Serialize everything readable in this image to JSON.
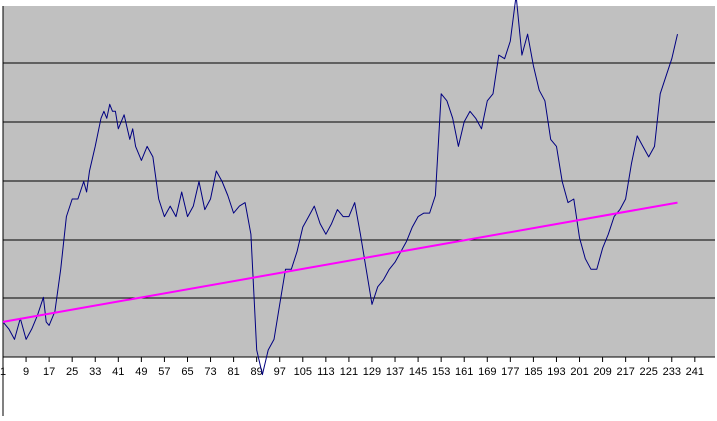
{
  "chart_data": {
    "type": "line",
    "title": "",
    "xlabel": "",
    "ylabel": "",
    "x_tick_labels": [
      "1",
      "9",
      "17",
      "25",
      "33",
      "41",
      "49",
      "57",
      "65",
      "73",
      "81",
      "89",
      "97",
      "105",
      "113",
      "121",
      "129",
      "137",
      "145",
      "153",
      "161",
      "169",
      "177",
      "185",
      "193",
      "201",
      "209",
      "217",
      "225",
      "233",
      "241"
    ],
    "xlim": [
      1,
      248
    ],
    "grid": "horizontal",
    "legend": "none",
    "colors": {
      "plot_bg": "#c0c0c0",
      "line1": "#000080",
      "line2": "#ff00ff",
      "grid": "#000000"
    },
    "series": [
      {
        "color": "#000080",
        "points": [
          [
            1,
            0.0
          ],
          [
            3,
            -0.2
          ],
          [
            5,
            -0.5
          ],
          [
            7,
            0.1
          ],
          [
            9,
            -0.5
          ],
          [
            11,
            -0.2
          ],
          [
            13,
            0.2
          ],
          [
            15,
            0.7
          ],
          [
            16,
            0.0
          ],
          [
            17,
            -0.1
          ],
          [
            19,
            0.3
          ],
          [
            21,
            1.5
          ],
          [
            23,
            3.0
          ],
          [
            25,
            3.5
          ],
          [
            27,
            3.5
          ],
          [
            29,
            4.0
          ],
          [
            30,
            3.7
          ],
          [
            31,
            4.3
          ],
          [
            33,
            5.0
          ],
          [
            35,
            5.8
          ],
          [
            36,
            6.0
          ],
          [
            37,
            5.8
          ],
          [
            38,
            6.2
          ],
          [
            39,
            6.0
          ],
          [
            40,
            6.0
          ],
          [
            41,
            5.5
          ],
          [
            43,
            5.9
          ],
          [
            45,
            5.2
          ],
          [
            46,
            5.5
          ],
          [
            47,
            5.0
          ],
          [
            49,
            4.6
          ],
          [
            51,
            5.0
          ],
          [
            53,
            4.7
          ],
          [
            55,
            3.5
          ],
          [
            57,
            3.0
          ],
          [
            59,
            3.3
          ],
          [
            61,
            3.0
          ],
          [
            63,
            3.7
          ],
          [
            65,
            3.0
          ],
          [
            67,
            3.3
          ],
          [
            69,
            4.0
          ],
          [
            71,
            3.2
          ],
          [
            73,
            3.5
          ],
          [
            75,
            4.3
          ],
          [
            77,
            4.0
          ],
          [
            79,
            3.6
          ],
          [
            81,
            3.1
          ],
          [
            82,
            3.2
          ],
          [
            83,
            3.3
          ],
          [
            85,
            3.4
          ],
          [
            87,
            2.5
          ],
          [
            89,
            -0.8
          ],
          [
            91,
            -1.5
          ],
          [
            93,
            -0.8
          ],
          [
            95,
            -0.5
          ],
          [
            97,
            0.5
          ],
          [
            99,
            1.5
          ],
          [
            101,
            1.5
          ],
          [
            103,
            2.0
          ],
          [
            105,
            2.7
          ],
          [
            107,
            3.0
          ],
          [
            109,
            3.3
          ],
          [
            111,
            2.8
          ],
          [
            113,
            2.5
          ],
          [
            115,
            2.8
          ],
          [
            117,
            3.2
          ],
          [
            119,
            3.0
          ],
          [
            121,
            3.0
          ],
          [
            123,
            3.4
          ],
          [
            125,
            2.5
          ],
          [
            127,
            1.5
          ],
          [
            129,
            0.5
          ],
          [
            131,
            1.0
          ],
          [
            133,
            1.2
          ],
          [
            135,
            1.5
          ],
          [
            137,
            1.7
          ],
          [
            139,
            2.0
          ],
          [
            141,
            2.3
          ],
          [
            143,
            2.7
          ],
          [
            145,
            3.0
          ],
          [
            147,
            3.1
          ],
          [
            149,
            3.1
          ],
          [
            151,
            3.6
          ],
          [
            153,
            6.5
          ],
          [
            155,
            6.3
          ],
          [
            157,
            5.8
          ],
          [
            159,
            5.0
          ],
          [
            161,
            5.7
          ],
          [
            163,
            6.0
          ],
          [
            165,
            5.8
          ],
          [
            167,
            5.5
          ],
          [
            169,
            6.3
          ],
          [
            171,
            6.5
          ],
          [
            173,
            7.6
          ],
          [
            175,
            7.5
          ],
          [
            177,
            8.0
          ],
          [
            179,
            9.3
          ],
          [
            181,
            7.6
          ],
          [
            183,
            8.2
          ],
          [
            185,
            7.3
          ],
          [
            187,
            6.6
          ],
          [
            189,
            6.3
          ],
          [
            191,
            5.2
          ],
          [
            193,
            5.0
          ],
          [
            195,
            4.0
          ],
          [
            197,
            3.4
          ],
          [
            199,
            3.5
          ],
          [
            201,
            2.4
          ],
          [
            203,
            1.8
          ],
          [
            205,
            1.5
          ],
          [
            207,
            1.5
          ],
          [
            209,
            2.1
          ],
          [
            211,
            2.5
          ],
          [
            213,
            3.0
          ],
          [
            215,
            3.2
          ],
          [
            217,
            3.5
          ],
          [
            219,
            4.5
          ],
          [
            221,
            5.3
          ],
          [
            223,
            5.0
          ],
          [
            225,
            4.7
          ],
          [
            227,
            5.0
          ],
          [
            229,
            6.5
          ],
          [
            231,
            7.0
          ],
          [
            233,
            7.5
          ],
          [
            235,
            8.2
          ]
        ]
      },
      {
        "color": "#ff00ff",
        "points": [
          [
            1,
            0.0
          ],
          [
            235,
            3.4
          ]
        ]
      }
    ]
  }
}
